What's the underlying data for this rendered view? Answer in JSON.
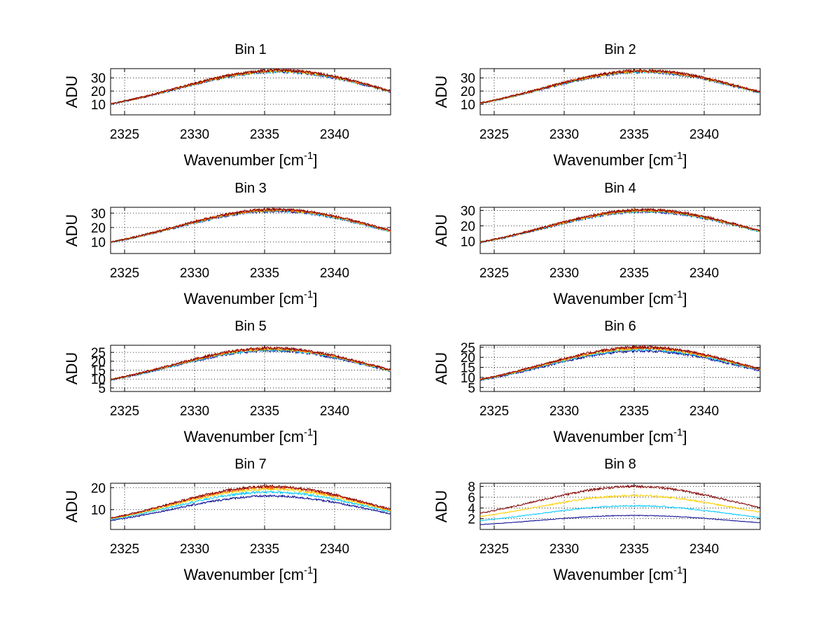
{
  "chart_data": [
    {
      "type": "line",
      "title": "Bin 1",
      "xlabel": "Wavenumber [cm",
      "xlabel_sup": "-1",
      "xlabel_end": "]",
      "ylabel": "ADU",
      "xlim": [
        2324,
        2344
      ],
      "ylim": [
        2,
        37
      ],
      "xticks": [
        2325,
        2330,
        2335,
        2340
      ],
      "yticks": [
        10,
        20,
        30
      ],
      "grid": true,
      "center": 2336,
      "width": 7.2,
      "series": [
        {
          "color": "#00008f",
          "peak": 34.6,
          "base": 2
        },
        {
          "color": "#00c8ff",
          "peak": 34.9,
          "base": 2
        },
        {
          "color": "#ffd000",
          "peak": 35.2,
          "base": 2
        },
        {
          "color": "#ff5000",
          "peak": 35.5,
          "base": 2
        },
        {
          "color": "#800000",
          "peak": 35.8,
          "base": 2
        }
      ]
    },
    {
      "type": "line",
      "title": "Bin 2",
      "xlabel": "Wavenumber [cm",
      "xlabel_sup": "-1",
      "xlabel_end": "]",
      "ylabel": "ADU",
      "xlim": [
        2324,
        2344
      ],
      "ylim": [
        2,
        37
      ],
      "xticks": [
        2325,
        2330,
        2335,
        2340
      ],
      "yticks": [
        10,
        20,
        30
      ],
      "grid": true,
      "center": 2335.7,
      "width": 7.2,
      "series": [
        {
          "color": "#00008f",
          "peak": 34.4,
          "base": 2
        },
        {
          "color": "#00c8ff",
          "peak": 34.7,
          "base": 2
        },
        {
          "color": "#ffd000",
          "peak": 35.0,
          "base": 2
        },
        {
          "color": "#ff5000",
          "peak": 35.3,
          "base": 2
        },
        {
          "color": "#800000",
          "peak": 35.6,
          "base": 2
        }
      ]
    },
    {
      "type": "line",
      "title": "Bin 3",
      "xlabel": "Wavenumber [cm",
      "xlabel_sup": "-1",
      "xlabel_end": "]",
      "ylabel": "ADU",
      "xlim": [
        2324,
        2344
      ],
      "ylim": [
        2,
        34
      ],
      "xticks": [
        2325,
        2330,
        2335,
        2340
      ],
      "yticks": [
        10,
        20,
        30
      ],
      "grid": true,
      "center": 2335.8,
      "width": 7.2,
      "series": [
        {
          "color": "#00008f",
          "peak": 31.4,
          "base": 2
        },
        {
          "color": "#00c8ff",
          "peak": 31.7,
          "base": 2
        },
        {
          "color": "#ffd000",
          "peak": 32.0,
          "base": 2
        },
        {
          "color": "#ff5000",
          "peak": 32.3,
          "base": 2
        },
        {
          "color": "#800000",
          "peak": 32.6,
          "base": 2
        }
      ]
    },
    {
      "type": "line",
      "title": "Bin 4",
      "xlabel": "Wavenumber [cm",
      "xlabel_sup": "-1",
      "xlabel_end": "]",
      "ylabel": "ADU",
      "xlim": [
        2324,
        2344
      ],
      "ylim": [
        2,
        32
      ],
      "xticks": [
        2325,
        2330,
        2335,
        2340
      ],
      "yticks": [
        10,
        20,
        30
      ],
      "grid": true,
      "center": 2335.8,
      "width": 7.2,
      "series": [
        {
          "color": "#00008f",
          "peak": 29.2,
          "base": 2
        },
        {
          "color": "#00c8ff",
          "peak": 29.5,
          "base": 2
        },
        {
          "color": "#ffd000",
          "peak": 29.8,
          "base": 2
        },
        {
          "color": "#ff5000",
          "peak": 30.1,
          "base": 2
        },
        {
          "color": "#800000",
          "peak": 30.4,
          "base": 2
        }
      ]
    },
    {
      "type": "line",
      "title": "Bin 5",
      "xlabel": "Wavenumber [cm",
      "xlabel_sup": "-1",
      "xlabel_end": "]",
      "ylabel": "ADU",
      "xlim": [
        2324,
        2344
      ],
      "ylim": [
        3,
        29
      ],
      "xticks": [
        2325,
        2330,
        2335,
        2340
      ],
      "yticks": [
        5,
        10,
        15,
        20,
        25
      ],
      "grid": true,
      "center": 2335.5,
      "width": 7.2,
      "series": [
        {
          "color": "#00008f",
          "peak": 26.0,
          "base": 3
        },
        {
          "color": "#00c8ff",
          "peak": 26.4,
          "base": 3
        },
        {
          "color": "#ffd000",
          "peak": 26.8,
          "base": 3
        },
        {
          "color": "#ff5000",
          "peak": 27.1,
          "base": 3
        },
        {
          "color": "#800000",
          "peak": 27.4,
          "base": 3
        }
      ]
    },
    {
      "type": "line",
      "title": "Bin 6",
      "xlabel": "Wavenumber [cm",
      "xlabel_sup": "-1",
      "xlabel_end": "]",
      "ylabel": "ADU",
      "xlim": [
        2324,
        2344
      ],
      "ylim": [
        3,
        26
      ],
      "xticks": [
        2325,
        2330,
        2335,
        2340
      ],
      "yticks": [
        5,
        10,
        15,
        20,
        25
      ],
      "grid": true,
      "center": 2335.6,
      "width": 7.2,
      "series": [
        {
          "color": "#00008f",
          "peak": 23.2,
          "base": 3
        },
        {
          "color": "#00c8ff",
          "peak": 23.9,
          "base": 3
        },
        {
          "color": "#ffd000",
          "peak": 24.4,
          "base": 3
        },
        {
          "color": "#ff5000",
          "peak": 24.8,
          "base": 3
        },
        {
          "color": "#800000",
          "peak": 25.1,
          "base": 3
        }
      ]
    },
    {
      "type": "line",
      "title": "Bin 7",
      "xlabel": "Wavenumber [cm",
      "xlabel_sup": "-1",
      "xlabel_end": "]",
      "ylabel": "ADU",
      "xlim": [
        2324,
        2344
      ],
      "ylim": [
        1,
        22
      ],
      "xticks": [
        2325,
        2330,
        2335,
        2340
      ],
      "yticks": [
        10,
        20
      ],
      "grid": true,
      "center": 2335.4,
      "width": 7.0,
      "series": [
        {
          "color": "#00008f",
          "peak": 16.2,
          "base": 1
        },
        {
          "color": "#00c8ff",
          "peak": 18.0,
          "base": 1
        },
        {
          "color": "#ffd000",
          "peak": 19.3,
          "base": 1
        },
        {
          "color": "#ff5000",
          "peak": 20.1,
          "base": 1
        },
        {
          "color": "#800000",
          "peak": 20.6,
          "base": 1
        }
      ]
    },
    {
      "type": "line",
      "title": "Bin 8",
      "xlabel": "Wavenumber [cm",
      "xlabel_sup": "-1",
      "xlabel_end": "]",
      "ylabel": "ADU",
      "xlim": [
        2324,
        2344
      ],
      "ylim": [
        0,
        8.6
      ],
      "xticks": [
        2325,
        2330,
        2335,
        2340
      ],
      "yticks": [
        2,
        4,
        6,
        8
      ],
      "grid": true,
      "center": 2335.0,
      "width": 7.0,
      "series": [
        {
          "color": "#00008f",
          "peak": 2.6,
          "base": 0.2
        },
        {
          "color": "#00c8ff",
          "peak": 4.4,
          "base": 0.5
        },
        {
          "color": "#ffd000",
          "peak": 6.3,
          "base": 0.8
        },
        {
          "color": "#800000",
          "peak": 8.0,
          "base": 1.0
        }
      ]
    }
  ]
}
